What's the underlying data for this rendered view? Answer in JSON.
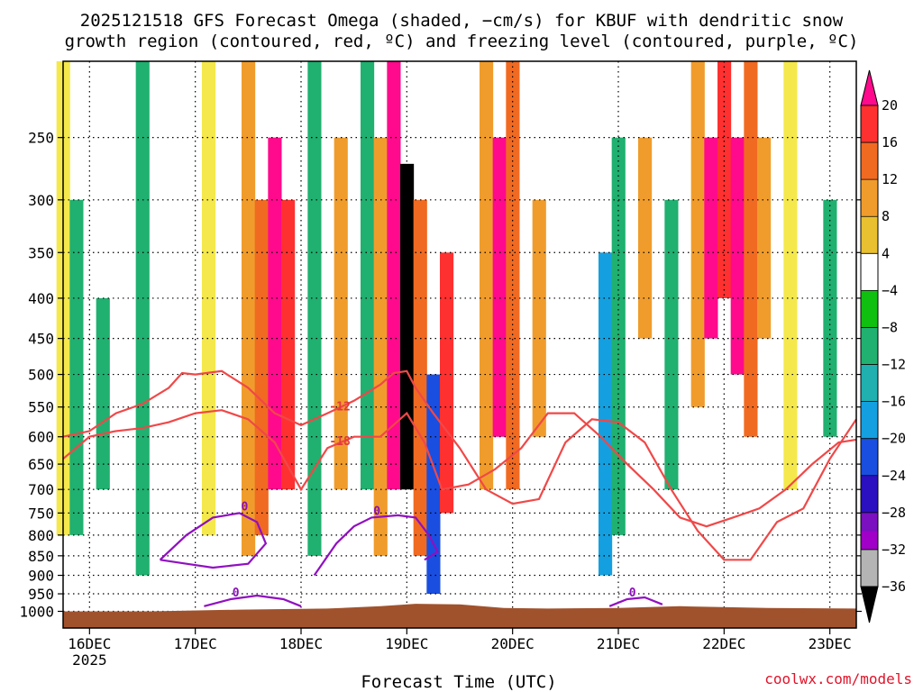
{
  "chart_data": {
    "type": "heatmap",
    "title_lines": [
      "2025121518 GFS Forecast Omega (shaded, −cm/s) for KBUF with dendritic snow",
      "growth region (contoured, red, ºC) and freezing level (contoured, purple, ºC)"
    ],
    "xlabel": "Forecast Time (UTC)",
    "credit": "coolwx.com/models",
    "x_ticks": [
      {
        "hour": 6,
        "label": "16DEC",
        "sub": "2025"
      },
      {
        "hour": 30,
        "label": "17DEC"
      },
      {
        "hour": 54,
        "label": "18DEC"
      },
      {
        "hour": 78,
        "label": "19DEC"
      },
      {
        "hour": 102,
        "label": "20DEC"
      },
      {
        "hour": 126,
        "label": "21DEC"
      },
      {
        "hour": 150,
        "label": "22DEC"
      },
      {
        "hour": 174,
        "label": "23DEC"
      }
    ],
    "xlim": [
      0,
      180
    ],
    "y_ticks": [
      250,
      300,
      350,
      400,
      450,
      500,
      550,
      600,
      650,
      700,
      750,
      800,
      850,
      900,
      950,
      1000
    ],
    "ylim": [
      1050,
      200
    ],
    "y_scale": "log",
    "colorbar": {
      "labels": [
        "20",
        "16",
        "12",
        "8",
        "4",
        "−4",
        "−8",
        "−12",
        "−16",
        "−20",
        "−24",
        "−28",
        "−32",
        "−36"
      ],
      "colors": [
        "#ff0a8c",
        "#ff3030",
        "#f06a22",
        "#f09c2c",
        "#e8c030",
        "#f4e84c",
        "#ffffff",
        "#10c010",
        "#20b070",
        "#20b0b0",
        "#14a0e0",
        "#1a4ee0",
        "#2a10c0",
        "#7a10c0",
        "#a000c8",
        "#b4b4b4",
        "#000000"
      ]
    },
    "omega_cells": [
      {
        "hour": 0,
        "top": 200,
        "bottom": 800,
        "value": 6
      },
      {
        "hour": 3,
        "top": 300,
        "bottom": 800,
        "value": -10
      },
      {
        "hour": 9,
        "top": 400,
        "bottom": 700,
        "value": -8
      },
      {
        "hour": 18,
        "top": 200,
        "bottom": 900,
        "value": -8
      },
      {
        "hour": 33,
        "top": 200,
        "bottom": 800,
        "value": 6
      },
      {
        "hour": 42,
        "top": 200,
        "bottom": 850,
        "value": 10
      },
      {
        "hour": 45,
        "top": 300,
        "bottom": 800,
        "value": 14
      },
      {
        "hour": 48,
        "top": 250,
        "bottom": 700,
        "value": 22
      },
      {
        "hour": 51,
        "top": 300,
        "bottom": 700,
        "value": 18
      },
      {
        "hour": 57,
        "top": 200,
        "bottom": 850,
        "value": -8
      },
      {
        "hour": 63,
        "top": 250,
        "bottom": 700,
        "value": 8
      },
      {
        "hour": 69,
        "top": 200,
        "bottom": 700,
        "value": -10
      },
      {
        "hour": 72,
        "top": 250,
        "bottom": 850,
        "value": 8
      },
      {
        "hour": 75,
        "top": 200,
        "bottom": 700,
        "value": 22
      },
      {
        "hour": 78,
        "top": 270,
        "bottom": 700,
        "value": -40
      },
      {
        "hour": 81,
        "top": 300,
        "bottom": 850,
        "value": 14
      },
      {
        "hour": 84,
        "top": 500,
        "bottom": 950,
        "value": -20
      },
      {
        "hour": 87,
        "top": 350,
        "bottom": 750,
        "value": 16
      },
      {
        "hour": 96,
        "top": 200,
        "bottom": 700,
        "value": 8
      },
      {
        "hour": 99,
        "top": 250,
        "bottom": 600,
        "value": 20
      },
      {
        "hour": 102,
        "top": 200,
        "bottom": 700,
        "value": 12
      },
      {
        "hour": 108,
        "top": 300,
        "bottom": 600,
        "value": 10
      },
      {
        "hour": 123,
        "top": 350,
        "bottom": 900,
        "value": -16
      },
      {
        "hour": 126,
        "top": 250,
        "bottom": 800,
        "value": -8
      },
      {
        "hour": 132,
        "top": 250,
        "bottom": 450,
        "value": 8
      },
      {
        "hour": 138,
        "top": 300,
        "bottom": 700,
        "value": -8
      },
      {
        "hour": 144,
        "top": 200,
        "bottom": 550,
        "value": 10
      },
      {
        "hour": 147,
        "top": 250,
        "bottom": 450,
        "value": 20
      },
      {
        "hour": 150,
        "top": 200,
        "bottom": 400,
        "value": 16
      },
      {
        "hour": 153,
        "top": 250,
        "bottom": 500,
        "value": 22
      },
      {
        "hour": 156,
        "top": 200,
        "bottom": 600,
        "value": 14
      },
      {
        "hour": 159,
        "top": 250,
        "bottom": 450,
        "value": 8
      },
      {
        "hour": 165,
        "top": 200,
        "bottom": 700,
        "value": 6
      },
      {
        "hour": 174,
        "top": 300,
        "bottom": 600,
        "value": -8
      }
    ],
    "dgz_lines": [
      {
        "label": "-12",
        "points": [
          [
            0,
            600
          ],
          [
            6,
            590
          ],
          [
            12,
            560
          ],
          [
            18,
            545
          ],
          [
            24,
            520
          ],
          [
            27,
            498
          ],
          [
            30,
            500
          ],
          [
            36,
            495
          ],
          [
            42,
            520
          ],
          [
            48,
            560
          ],
          [
            54,
            580
          ],
          [
            60,
            560
          ],
          [
            66,
            540
          ],
          [
            72,
            515
          ],
          [
            75,
            498
          ],
          [
            78,
            495
          ],
          [
            80,
            520
          ],
          [
            84,
            560
          ],
          [
            90,
            620
          ],
          [
            96,
            700
          ],
          [
            102,
            730
          ],
          [
            108,
            720
          ],
          [
            114,
            610
          ],
          [
            120,
            570
          ],
          [
            126,
            575
          ],
          [
            132,
            610
          ],
          [
            138,
            700
          ],
          [
            144,
            790
          ],
          [
            150,
            860
          ],
          [
            156,
            860
          ],
          [
            162,
            770
          ],
          [
            168,
            740
          ],
          [
            174,
            640
          ],
          [
            180,
            570
          ]
        ]
      },
      {
        "label": "-18",
        "points": [
          [
            0,
            640
          ],
          [
            6,
            600
          ],
          [
            12,
            590
          ],
          [
            18,
            585
          ],
          [
            24,
            575
          ],
          [
            30,
            560
          ],
          [
            36,
            555
          ],
          [
            42,
            570
          ],
          [
            48,
            610
          ],
          [
            54,
            700
          ],
          [
            60,
            620
          ],
          [
            66,
            600
          ],
          [
            72,
            600
          ],
          [
            78,
            560
          ],
          [
            82,
            610
          ],
          [
            86,
            700
          ],
          [
            92,
            690
          ],
          [
            98,
            660
          ],
          [
            104,
            620
          ],
          [
            110,
            560
          ],
          [
            116,
            560
          ],
          [
            122,
            600
          ],
          [
            128,
            650
          ],
          [
            134,
            700
          ],
          [
            140,
            760
          ],
          [
            146,
            780
          ],
          [
            152,
            760
          ],
          [
            158,
            740
          ],
          [
            164,
            700
          ],
          [
            170,
            650
          ],
          [
            176,
            610
          ],
          [
            180,
            605
          ]
        ]
      }
    ],
    "freezing_lines": [
      {
        "label": "0",
        "points": [
          [
            22,
            860
          ],
          [
            28,
            800
          ],
          [
            34,
            760
          ],
          [
            40,
            750
          ],
          [
            44,
            770
          ],
          [
            46,
            820
          ],
          [
            42,
            870
          ],
          [
            34,
            880
          ],
          [
            28,
            870
          ],
          [
            22,
            860
          ]
        ]
      },
      {
        "label": "0",
        "points": [
          [
            57,
            900
          ],
          [
            62,
            820
          ],
          [
            66,
            780
          ],
          [
            70,
            760
          ],
          [
            76,
            755
          ],
          [
            80,
            760
          ],
          [
            83,
            800
          ],
          [
            85,
            840
          ],
          [
            82,
            860
          ]
        ]
      },
      {
        "label": "0",
        "points": [
          [
            32,
            985
          ],
          [
            38,
            965
          ],
          [
            44,
            955
          ],
          [
            50,
            965
          ],
          [
            54,
            985
          ]
        ]
      },
      {
        "label": "0",
        "points": [
          [
            124,
            985
          ],
          [
            128,
            965
          ],
          [
            132,
            960
          ],
          [
            136,
            980
          ]
        ]
      }
    ]
  }
}
